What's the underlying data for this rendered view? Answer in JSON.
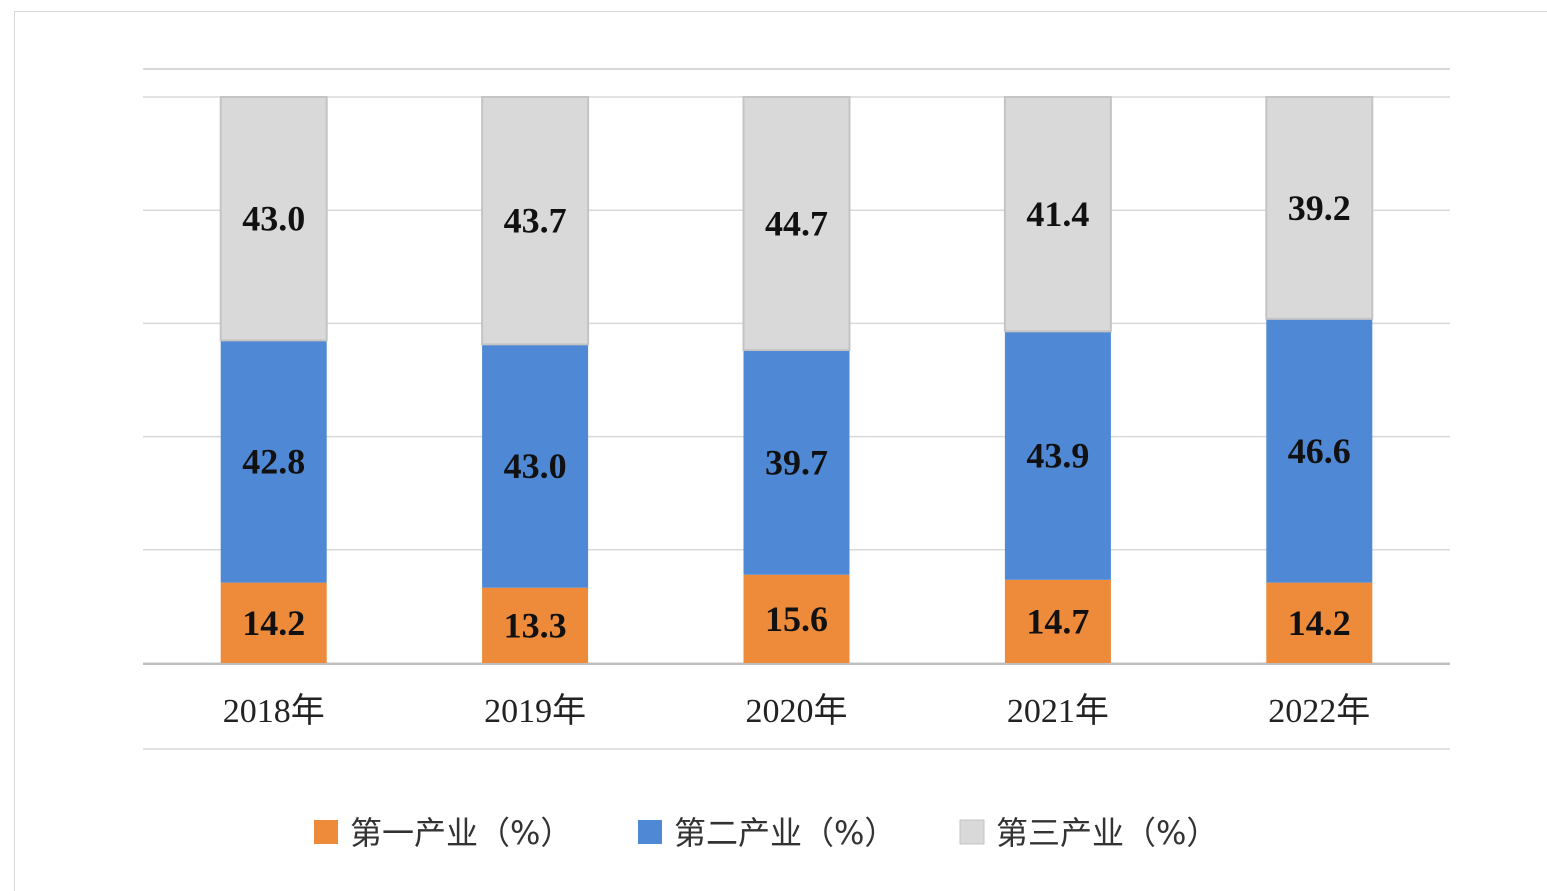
{
  "chart_data": {
    "type": "bar",
    "stacked": true,
    "categories": [
      "2018年",
      "2019年",
      "2020年",
      "2021年",
      "2022年"
    ],
    "series": [
      {
        "name": "第一产业（%）",
        "values": [
          14.2,
          13.3,
          15.6,
          14.7,
          14.2
        ],
        "color": "#ed8b3a"
      },
      {
        "name": "第二产业（%）",
        "values": [
          42.8,
          43.0,
          39.7,
          43.9,
          46.6
        ],
        "color": "#4f88d4"
      },
      {
        "name": "第三产业（%）",
        "values": [
          43.0,
          43.7,
          44.7,
          41.4,
          39.2
        ],
        "color": "#d9d9d9"
      }
    ],
    "ylim": [
      0,
      100
    ],
    "grid": true,
    "legend": "bottom",
    "title": "",
    "xlabel": "",
    "ylabel": ""
  }
}
